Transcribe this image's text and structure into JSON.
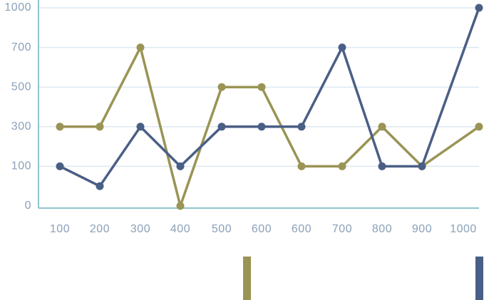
{
  "chart_data": {
    "type": "line",
    "categories": [
      "100",
      "200",
      "300",
      "400",
      "500",
      "600",
      "600",
      "700",
      "800",
      "900",
      "1000"
    ],
    "series": [
      {
        "color": "#9a9455",
        "values": [
          300,
          300,
          700,
          0,
          500,
          500,
          100,
          100,
          300,
          100,
          300
        ]
      },
      {
        "color": "#4a5f86",
        "values": [
          100,
          50,
          300,
          100,
          300,
          300,
          300,
          700,
          100,
          100,
          1000
        ]
      }
    ],
    "ylim": [
      0,
      1000
    ],
    "yticks": [
      0,
      100,
      300,
      500,
      700,
      1000
    ],
    "grid": true
  }
}
